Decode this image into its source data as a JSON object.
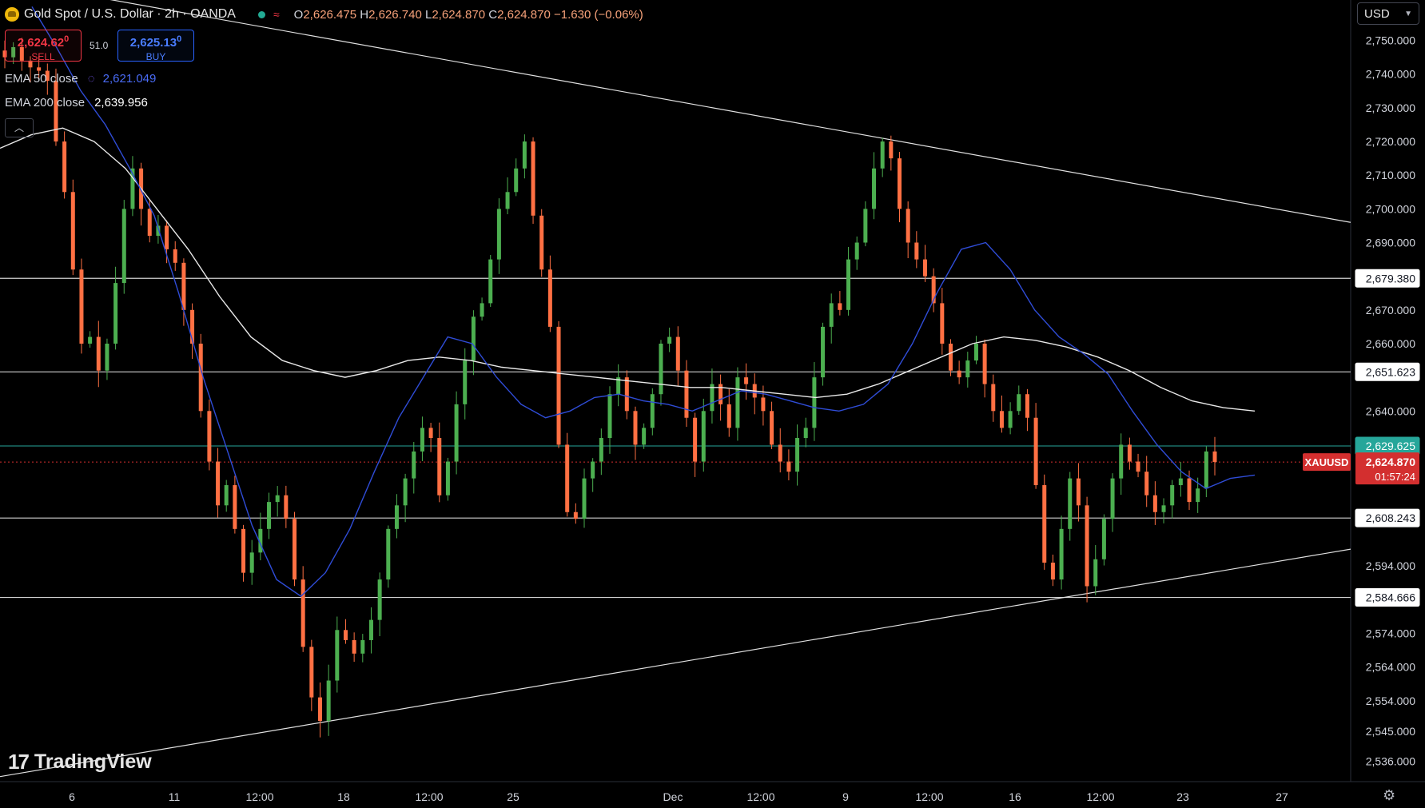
{
  "header": {
    "title": "Gold Spot / U.S. Dollar · 2h · OANDA",
    "ohlc": {
      "o_label": "O",
      "o": "2,626.475",
      "h_label": "H",
      "h": "2,626.740",
      "l_label": "L",
      "l": "2,624.870",
      "c_label": "C",
      "c": "2,624.870",
      "change": "−1.630 (−0.06%)"
    }
  },
  "trade": {
    "sell_price": "2,624.62",
    "sell_price_sup": "0",
    "sell_label": "SELL",
    "spread": "51.0",
    "buy_price": "2,625.13",
    "buy_price_sup": "0",
    "buy_label": "BUY"
  },
  "indicators": {
    "ema50_label": "EMA 50 close",
    "ema50_value": "2,621.049",
    "ema200_label": "EMA 200 close",
    "ema200_value": "2,639.956"
  },
  "currency_button": "USD",
  "branding": "TradingView",
  "colors": {
    "background": "#000000",
    "up_candle": "#4caf50",
    "down_candle": "#ff7043",
    "ema50": "#2f4cd6",
    "ema200": "#e8e8e8",
    "last_price": "#d32f2f",
    "green_level": "#26a69a"
  },
  "chart_data": {
    "type": "candlestick",
    "symbol_label": "XAUUSD",
    "countdown": "01:57:24",
    "last_price": 2624.87,
    "current_level": 2629.625,
    "ylim": [
      2530,
      2762
    ],
    "y_ticks": [
      2750,
      2740,
      2730,
      2720,
      2710,
      2700,
      2690,
      2670,
      2660,
      2640,
      2594,
      2574,
      2564,
      2554,
      2545,
      2536
    ],
    "x_ticks": [
      "6",
      "11",
      "12:00",
      "18",
      "12:00",
      "25",
      "Dec",
      "12:00",
      "9",
      "12:00",
      "16",
      "12:00",
      "23",
      "27"
    ],
    "horizontal_levels": [
      2679.38,
      2651.623,
      2608.243,
      2584.666
    ],
    "horizontal_level_labels": [
      "2,679.380",
      "2,651.623",
      "2,608.243",
      "2,584.666"
    ],
    "current_level_label": "2,629.625",
    "last_price_label": "2,624.870",
    "trendlines": [
      {
        "name": "upper-trendline",
        "x": [
          0.0,
          1.0
        ],
        "y": [
          2768,
          2696
        ]
      },
      {
        "name": "lower-trendline",
        "x": [
          0.0,
          1.0
        ],
        "y": [
          2531.5,
          2599
        ]
      }
    ],
    "series_close": [
      2745,
      2748,
      2744,
      2742,
      2741,
      2738,
      2720,
      2705,
      2682,
      2660,
      2662,
      2652,
      2660,
      2678,
      2700,
      2712,
      2700,
      2692,
      2695,
      2688,
      2684,
      2670,
      2660,
      2640,
      2625,
      2612,
      2618,
      2605,
      2592,
      2598,
      2605,
      2613,
      2615,
      2608,
      2590,
      2570,
      2555,
      2548,
      2560,
      2575,
      2572,
      2568,
      2572,
      2578,
      2590,
      2605,
      2612,
      2620,
      2628,
      2635,
      2632,
      2615,
      2625,
      2642,
      2655,
      2668,
      2672,
      2685,
      2700,
      2705,
      2712,
      2720,
      2698,
      2682,
      2665,
      2630,
      2610,
      2608,
      2620,
      2625,
      2632,
      2645,
      2650,
      2640,
      2630,
      2635,
      2645,
      2660,
      2662,
      2652,
      2638,
      2625,
      2640,
      2648,
      2642,
      2635,
      2650,
      2648,
      2644,
      2640,
      2630,
      2625,
      2622,
      2632,
      2635,
      2650,
      2665,
      2672,
      2670,
      2685,
      2690,
      2700,
      2712,
      2720,
      2715,
      2700,
      2690,
      2685,
      2680,
      2672,
      2660,
      2652,
      2650,
      2655,
      2660,
      2648,
      2640,
      2635,
      2640,
      2645,
      2638,
      2618,
      2595,
      2590,
      2605,
      2620,
      2612,
      2588,
      2596,
      2608,
      2620,
      2630,
      2625,
      2622,
      2615,
      2610,
      2612,
      2618,
      2620,
      2613,
      2617,
      2628,
      2624.87
    ],
    "ema50_points": [
      2760,
      2748,
      2735,
      2725,
      2712,
      2698,
      2675,
      2650,
      2628,
      2606,
      2590,
      2585,
      2592,
      2605,
      2622,
      2638,
      2650,
      2662,
      2660,
      2650,
      2642,
      2638,
      2640,
      2644,
      2645,
      2643,
      2642,
      2640,
      2643,
      2646,
      2645,
      2643,
      2641,
      2640,
      2642,
      2648,
      2660,
      2675,
      2688,
      2690,
      2682,
      2670,
      2662,
      2657,
      2651,
      2640,
      2630,
      2622,
      2617,
      2620,
      2621
    ],
    "ema200_points": [
      2718,
      2722,
      2724,
      2720,
      2712,
      2700,
      2688,
      2674,
      2662,
      2655,
      2652,
      2650,
      2652,
      2655,
      2656,
      2655,
      2653,
      2652,
      2651,
      2650,
      2649,
      2648,
      2647,
      2647,
      2646,
      2645,
      2644,
      2645,
      2648,
      2652,
      2656,
      2660,
      2662,
      2661,
      2659,
      2656,
      2652,
      2647,
      2643,
      2641,
      2640
    ]
  }
}
